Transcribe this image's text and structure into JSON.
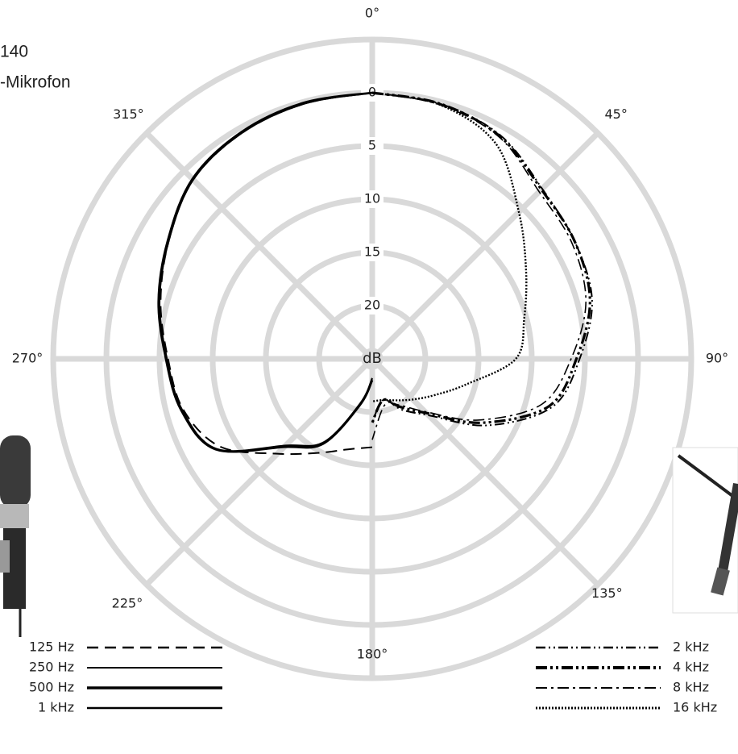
{
  "chart_data": {
    "type": "polar",
    "title": "140",
    "subtitle": "-Mikrofon",
    "r_label": "dB",
    "theta": [
      0,
      15,
      30,
      45,
      60,
      75,
      90,
      105,
      120,
      135,
      150,
      165,
      180,
      195,
      210,
      225,
      240,
      255,
      270,
      285,
      300,
      315,
      330,
      345,
      360
    ],
    "thetaticks": [
      {
        "value": 0,
        "label": "0°"
      },
      {
        "value": 45,
        "label": "45°"
      },
      {
        "value": 90,
        "label": "90°"
      },
      {
        "value": 135,
        "label": "135°"
      },
      {
        "value": 180,
        "label": "180°"
      },
      {
        "value": 225,
        "label": "225°"
      },
      {
        "value": 270,
        "label": "270°"
      },
      {
        "value": 315,
        "label": "315°"
      }
    ],
    "rlim": [
      25,
      -5
    ],
    "rticks": [
      0,
      5,
      10,
      15,
      20
    ],
    "series": [
      {
        "name": "125 Hz",
        "color": "#000000",
        "dash": "14 8",
        "width": 2.5,
        "values": [
          null,
          null,
          null,
          null,
          null,
          null,
          null,
          null,
          null,
          null,
          null,
          null,
          16.7,
          16.2,
          14.8,
          12.4,
          8.5,
          6.6,
          5.8,
          4.4,
          2.9,
          1.2,
          0.5,
          0.2,
          0
        ]
      },
      {
        "name": "250 Hz",
        "color": "#000000",
        "dash": "none",
        "width": 2,
        "values": [
          null,
          null,
          null,
          null,
          null,
          null,
          null,
          null,
          null,
          null,
          null,
          null,
          23.1,
          20.6,
          15.9,
          13.4,
          8.0,
          6.4,
          5.7,
          4.3,
          2.9,
          1.2,
          0.5,
          0.2,
          0
        ]
      },
      {
        "name": "500 Hz",
        "color": "#000000",
        "dash": "none",
        "width": 3.5,
        "values": [
          null,
          null,
          null,
          null,
          null,
          null,
          null,
          null,
          null,
          null,
          null,
          null,
          23.0,
          20.5,
          15.8,
          13.3,
          8.0,
          6.4,
          5.6,
          4.2,
          2.8,
          1.1,
          0.4,
          0.1,
          0
        ]
      },
      {
        "name": "1 kHz",
        "color": "#000000",
        "dash": "none",
        "width": 2.5,
        "values": [
          null,
          null,
          null,
          null,
          null,
          null,
          null,
          null,
          null,
          null,
          null,
          null,
          23.2,
          20.7,
          16.0,
          13.5,
          8.1,
          6.5,
          5.7,
          4.3,
          2.9,
          1.2,
          0.5,
          0.2,
          0
        ]
      },
      {
        "name": "2 kHz",
        "color": "#000000",
        "dash": "12 4 2 4 2 4",
        "width": 2.5,
        "values": [
          0,
          0.2,
          0.8,
          2.4,
          3.0,
          3.6,
          5.5,
          7.5,
          12.5,
          17.5,
          19.5,
          21,
          19,
          null,
          null,
          null,
          null,
          null,
          null,
          null,
          null,
          null,
          null,
          null,
          null
        ]
      },
      {
        "name": "4 kHz",
        "color": "#000000",
        "dash": "14 4 3 4 3 4",
        "width": 4,
        "values": [
          0,
          0.2,
          0.9,
          2.5,
          3.0,
          3.8,
          5.8,
          7.8,
          13,
          17.8,
          19.8,
          21,
          19,
          null,
          null,
          null,
          null,
          null,
          null,
          null,
          null,
          null,
          null,
          null,
          null
        ]
      },
      {
        "name": "8 kHz",
        "color": "#000000",
        "dash": "14 5 3 5",
        "width": 2,
        "values": [
          0,
          0.3,
          1.0,
          2.8,
          3.3,
          4.2,
          6.3,
          8.5,
          13.5,
          18,
          20,
          20.5,
          17.4,
          null,
          null,
          null,
          null,
          null,
          null,
          null,
          null,
          null,
          null,
          null,
          null
        ]
      },
      {
        "name": "16 kHz",
        "color": "#000000",
        "dash": "2 2",
        "width": 3,
        "values": [
          0,
          0.3,
          1.7,
          5.5,
          8.3,
          10.2,
          11.5,
          15.8,
          18.2,
          19.6,
          20.5,
          21,
          21,
          null,
          null,
          null,
          null,
          null,
          null,
          null,
          null,
          null,
          null,
          null,
          null
        ]
      }
    ]
  }
}
